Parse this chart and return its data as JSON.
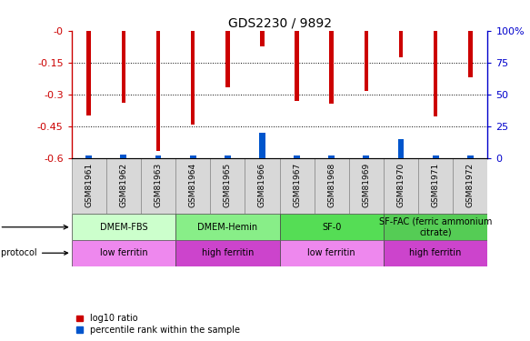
{
  "title": "GDS2230 / 9892",
  "samples": [
    "GSM81961",
    "GSM81962",
    "GSM81963",
    "GSM81964",
    "GSM81965",
    "GSM81966",
    "GSM81967",
    "GSM81968",
    "GSM81969",
    "GSM81970",
    "GSM81971",
    "GSM81972"
  ],
  "log10_ratio": [
    -0.4,
    -0.34,
    -0.565,
    -0.44,
    -0.265,
    -0.075,
    -0.33,
    -0.345,
    -0.285,
    -0.125,
    -0.405,
    -0.22
  ],
  "percentile_rank": [
    2,
    3,
    2,
    2,
    2,
    20,
    2,
    2,
    2,
    15,
    2,
    2
  ],
  "ylim_left": [
    -0.6,
    0.0
  ],
  "ylim_right": [
    0,
    100
  ],
  "yticks_left": [
    0.0,
    -0.15,
    -0.3,
    -0.45,
    -0.6
  ],
  "yticks_right": [
    0,
    25,
    50,
    75,
    100
  ],
  "bar_color_red": "#cc0000",
  "bar_color_blue": "#0055cc",
  "agent_groups": [
    {
      "label": "DMEM-FBS",
      "start": 0,
      "end": 3,
      "color": "#ccffcc"
    },
    {
      "label": "DMEM-Hemin",
      "start": 3,
      "end": 6,
      "color": "#88ee88"
    },
    {
      "label": "SF-0",
      "start": 6,
      "end": 9,
      "color": "#55dd55"
    },
    {
      "label": "SF-FAC (ferric ammonium\ncitrate)",
      "start": 9,
      "end": 12,
      "color": "#55cc55"
    }
  ],
  "protocol_groups": [
    {
      "label": "low ferritin",
      "start": 0,
      "end": 3,
      "color": "#ee88ee"
    },
    {
      "label": "high ferritin",
      "start": 3,
      "end": 6,
      "color": "#cc44cc"
    },
    {
      "label": "low ferritin",
      "start": 6,
      "end": 9,
      "color": "#ee88ee"
    },
    {
      "label": "high ferritin",
      "start": 9,
      "end": 12,
      "color": "#cc44cc"
    }
  ],
  "legend_red_label": "log10 ratio",
  "legend_blue_label": "percentile rank within the sample",
  "left_axis_color": "#cc0000",
  "right_axis_color": "#0000cc",
  "grid_values": [
    -0.15,
    -0.3,
    -0.45
  ],
  "bar_width": 0.12,
  "blue_bar_width": 0.18
}
